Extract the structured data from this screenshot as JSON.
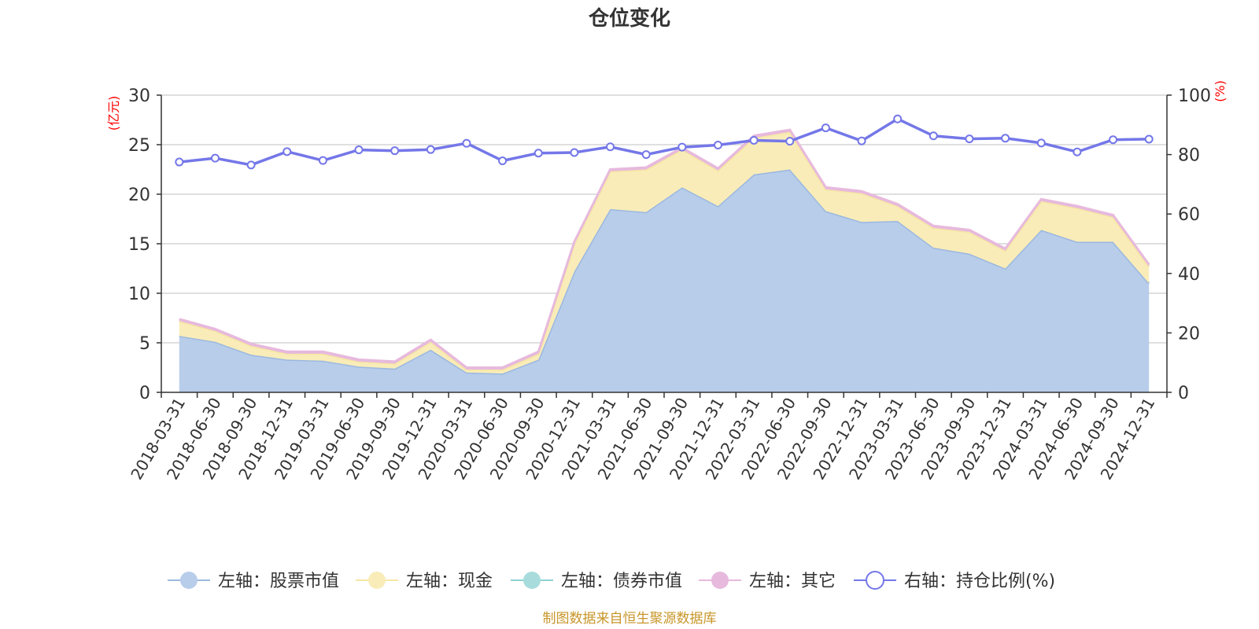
{
  "chart_data": {
    "type": "area",
    "title": "仓位变化",
    "left_unit": "(亿元)",
    "right_unit": "(%)",
    "ylim_left": [
      0,
      30
    ],
    "yticks_left": [
      "0",
      "5",
      "10",
      "15",
      "20",
      "25",
      "30"
    ],
    "ylim_right": [
      0,
      100
    ],
    "yticks_right": [
      "0",
      "20",
      "40",
      "60",
      "80",
      "100"
    ],
    "grid": true,
    "legend_position": "bottom",
    "categories": [
      "2018-03-31",
      "2018-06-30",
      "2018-09-30",
      "2018-12-31",
      "2019-03-31",
      "2019-06-30",
      "2019-09-30",
      "2019-12-31",
      "2020-03-31",
      "2020-06-30",
      "2020-09-30",
      "2020-12-31",
      "2021-03-31",
      "2021-06-30",
      "2021-09-30",
      "2021-12-31",
      "2022-03-31",
      "2022-06-30",
      "2022-09-30",
      "2022-12-31",
      "2023-03-31",
      "2023-06-30",
      "2023-09-30",
      "2023-12-31",
      "2024-03-31",
      "2024-06-30",
      "2024-09-30",
      "2024-12-31"
    ],
    "series": [
      {
        "name": "左轴：股票市值",
        "axis": "left",
        "color": "#9bb8e0",
        "fill": "#b8cdea",
        "values": [
          5.7,
          5.1,
          3.8,
          3.3,
          3.2,
          2.6,
          2.4,
          4.3,
          2.0,
          1.9,
          3.3,
          12.2,
          18.5,
          18.2,
          20.7,
          18.8,
          22.0,
          22.5,
          18.3,
          17.2,
          17.3,
          14.6,
          14.0,
          12.5,
          16.4,
          15.2,
          15.2,
          11.0
        ]
      },
      {
        "name": "左轴：现金",
        "axis": "left",
        "color": "#f5e6a3",
        "fill": "#f9ecb8",
        "values": [
          1.5,
          1.1,
          0.9,
          0.6,
          0.7,
          0.5,
          0.5,
          0.8,
          0.3,
          0.4,
          0.6,
          2.8,
          3.8,
          4.3,
          3.8,
          3.6,
          3.7,
          3.8,
          2.2,
          2.9,
          1.5,
          2.0,
          2.2,
          1.8,
          2.9,
          3.4,
          2.5,
          1.7
        ]
      },
      {
        "name": "左轴：债券市值",
        "axis": "left",
        "color": "#8fd1d1",
        "fill": "#a8dcdc",
        "values": [
          0,
          0,
          0,
          0,
          0,
          0,
          0,
          0,
          0,
          0,
          0,
          0,
          0,
          0,
          0,
          0,
          0,
          0,
          0,
          0,
          0,
          0,
          0,
          0,
          0,
          0,
          0,
          0
        ]
      },
      {
        "name": "左轴：其它",
        "axis": "left",
        "color": "#e7b9dd",
        "fill": "#e7b9dd",
        "values": [
          0.2,
          0.2,
          0.2,
          0.2,
          0.2,
          0.2,
          0.2,
          0.2,
          0.2,
          0.2,
          0.2,
          0.2,
          0.2,
          0.2,
          0.2,
          0.2,
          0.2,
          0.2,
          0.2,
          0.2,
          0.2,
          0.2,
          0.2,
          0.2,
          0.2,
          0.2,
          0.2,
          0.2
        ]
      },
      {
        "name": "右轴：持仓比例(%)",
        "axis": "right",
        "color": "#7477e8",
        "values": [
          77.5,
          78.8,
          76.5,
          81.0,
          78.0,
          81.6,
          81.3,
          81.7,
          83.8,
          77.9,
          80.5,
          80.7,
          82.6,
          80.0,
          82.5,
          83.2,
          84.8,
          84.5,
          89.0,
          84.6,
          92.0,
          86.3,
          85.3,
          85.5,
          83.9,
          80.9,
          85.0,
          85.2
        ]
      }
    ],
    "source_note": "制图数据来自恒生聚源数据库"
  }
}
